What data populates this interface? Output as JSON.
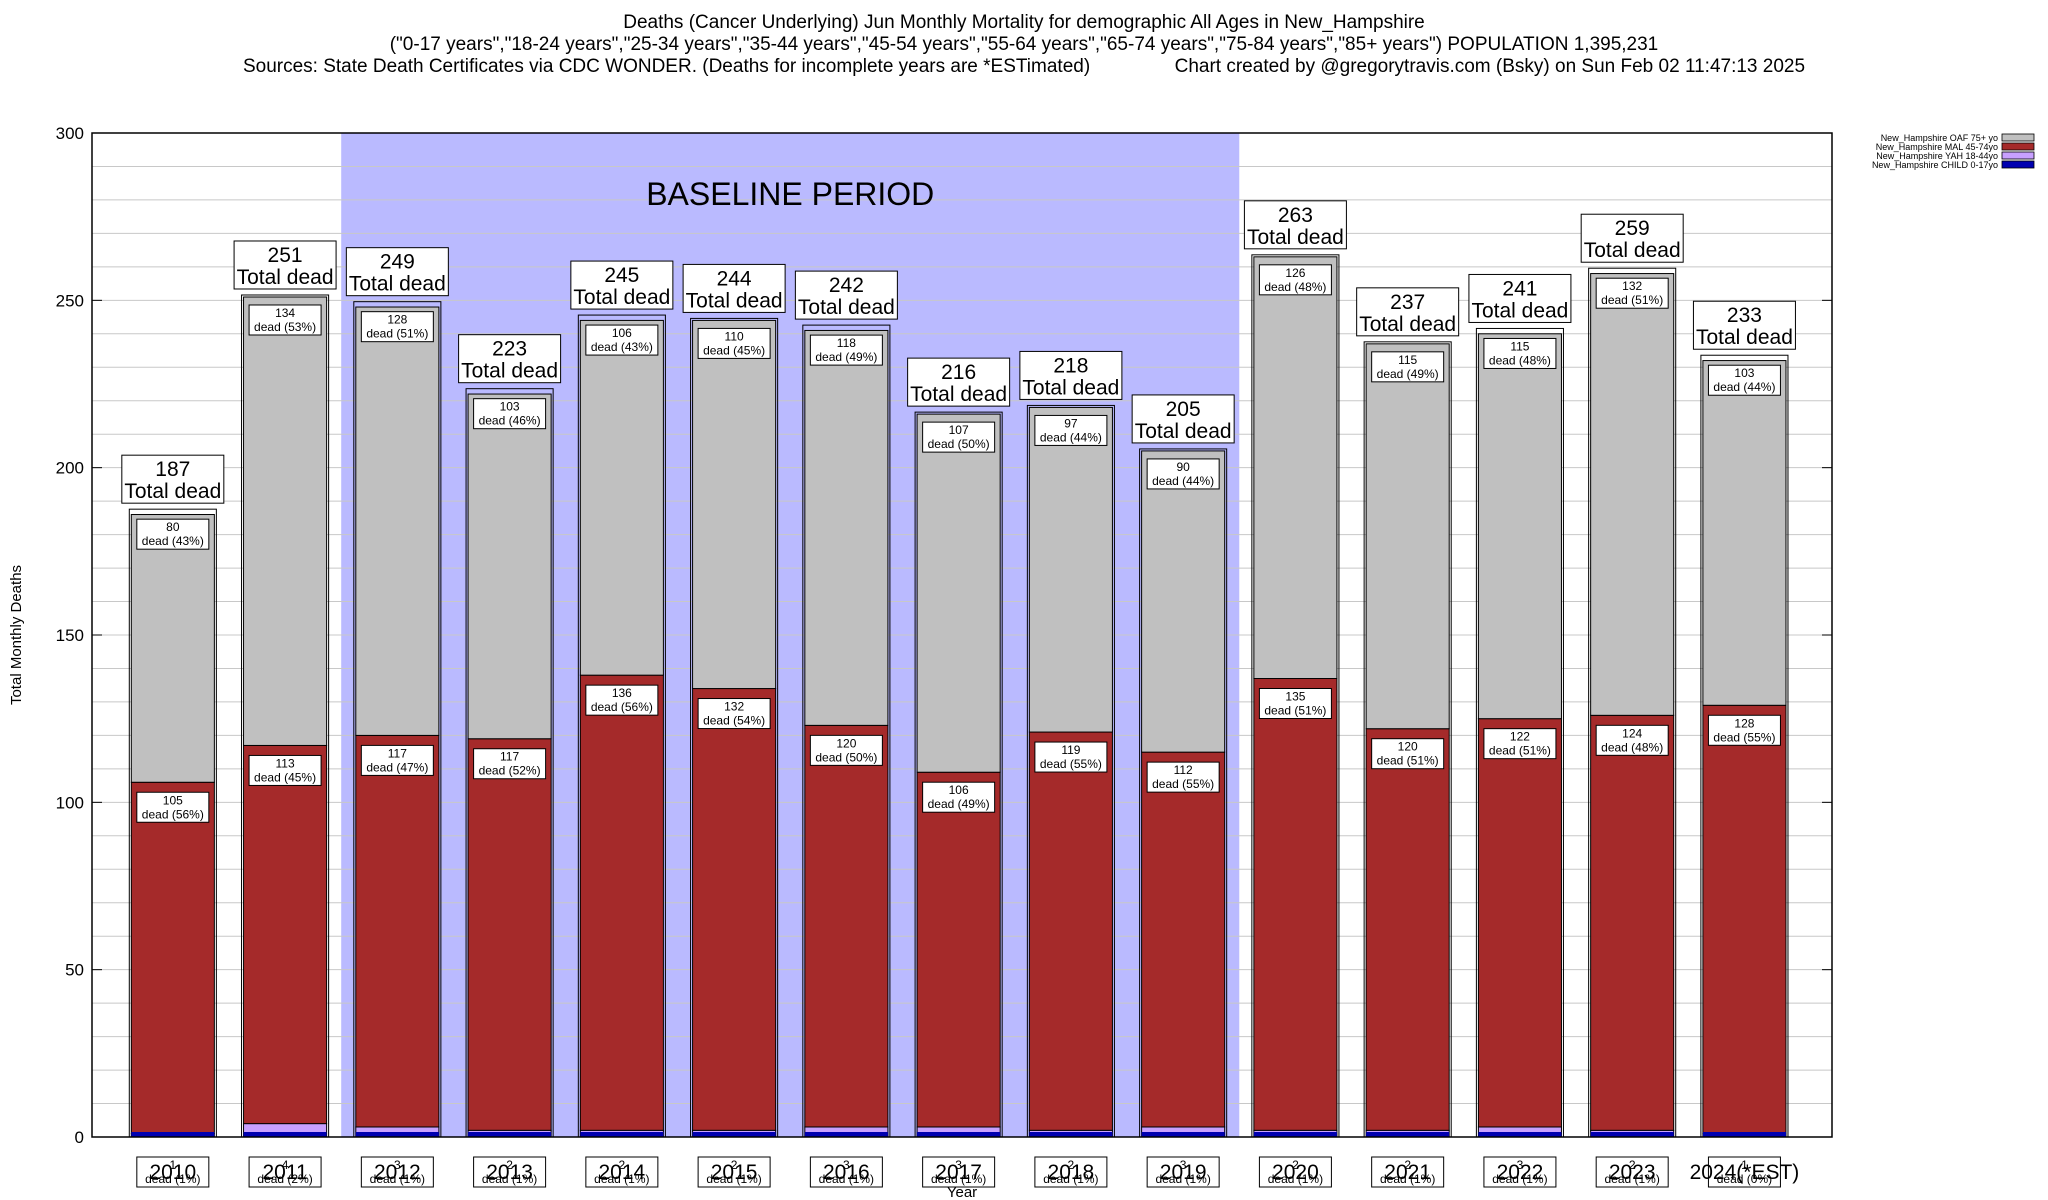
{
  "header": {
    "line1": "Deaths (Cancer Underlying) Jun Monthly Mortality for demographic All Ages in New_Hampshire",
    "line2": "(\"0-17 years\",\"18-24 years\",\"25-34 years\",\"35-44 years\",\"45-54 years\",\"55-64 years\",\"65-74 years\",\"75-84 years\",\"85+ years\") POPULATION 1,395,231",
    "line3": "Sources: State Death Certificates via CDC WONDER. (Deaths for incomplete years are *ESTimated)                Chart created by @gregorytravis.com (Bsky) on Sun Feb 02 11:47:13 2025"
  },
  "chart_data": {
    "type": "bar",
    "stacked": true,
    "xlabel": "Year",
    "ylabel": "Total Monthly Deaths",
    "ylim": [
      0,
      300
    ],
    "yticks": [
      0,
      50,
      100,
      150,
      200,
      250,
      300
    ],
    "grid": "horizontal",
    "legend_position": "top-right",
    "categories": [
      "2010",
      "2011",
      "2012",
      "2013",
      "2014",
      "2015",
      "2016",
      "2017",
      "2018",
      "2019",
      "2020",
      "2021",
      "2022",
      "2023",
      "2024(*EST)"
    ],
    "baseline": {
      "label": "BASELINE PERIOD",
      "from": "2012",
      "to": "2019",
      "color": "#babaff"
    },
    "total_label": "Total dead",
    "dead_word": "dead",
    "series": [
      {
        "name": "New_Hampshire CHILD 0-17yo",
        "color": "#0000b0",
        "values": [
          0,
          0,
          0,
          0,
          0,
          0,
          0,
          0,
          0,
          0,
          0,
          0,
          0,
          0,
          0
        ]
      },
      {
        "name": "New_Hampshire YAH 18-44yo",
        "color": "#c8a0ff",
        "values": [
          1,
          4,
          3,
          2,
          2,
          2,
          3,
          3,
          2,
          3,
          2,
          2,
          3,
          2,
          1
        ],
        "pct": [
          "1%",
          "2%",
          "1%",
          "1%",
          "1%",
          "1%",
          "1%",
          "1%",
          "1%",
          "1%",
          "1%",
          "1%",
          "1%",
          "1%",
          "0%"
        ]
      },
      {
        "name": "New_Hampshire MAL 45-74yo",
        "color": "#a52a2a",
        "values": [
          105,
          113,
          117,
          117,
          136,
          132,
          120,
          106,
          119,
          112,
          135,
          120,
          122,
          124,
          128
        ],
        "pct": [
          "56%",
          "45%",
          "47%",
          "52%",
          "56%",
          "54%",
          "50%",
          "49%",
          "55%",
          "55%",
          "51%",
          "51%",
          "51%",
          "48%",
          "55%"
        ]
      },
      {
        "name": "New_Hampshire OAF 75+ yo",
        "color": "#c0c0c0",
        "values": [
          80,
          134,
          128,
          103,
          106,
          110,
          118,
          107,
          97,
          90,
          126,
          115,
          115,
          132,
          103
        ],
        "pct": [
          "43%",
          "53%",
          "51%",
          "46%",
          "43%",
          "45%",
          "49%",
          "50%",
          "44%",
          "44%",
          "48%",
          "49%",
          "48%",
          "51%",
          "44%"
        ]
      }
    ],
    "totals": [
      187,
      251,
      249,
      223,
      245,
      244,
      242,
      216,
      218,
      205,
      263,
      237,
      241,
      259,
      233
    ],
    "legend_order": [
      "New_Hampshire OAF 75+ yo",
      "New_Hampshire MAL 45-74yo",
      "New_Hampshire YAH 18-44yo",
      "New_Hampshire CHILD 0-17yo"
    ]
  }
}
